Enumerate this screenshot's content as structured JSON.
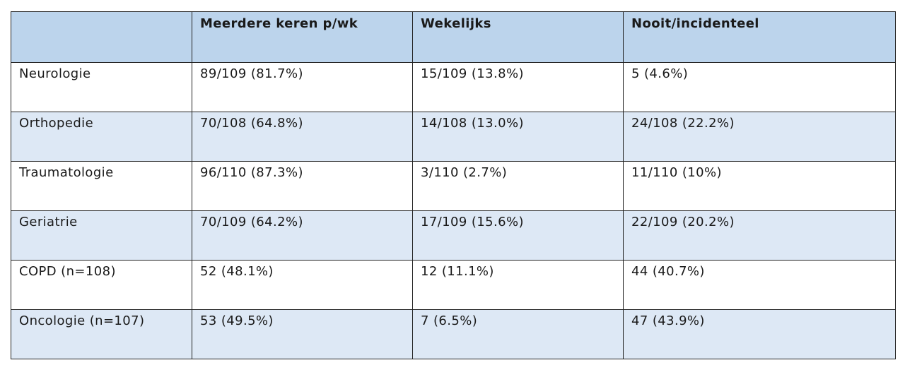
{
  "table": {
    "headers": [
      "",
      "Meerdere keren p/wk",
      "Wekelijks",
      "Nooit/incidenteel"
    ],
    "rows": [
      [
        "Neurologie",
        "89/109 (81.7%)",
        "15/109 (13.8%)",
        "5 (4.6%)"
      ],
      [
        "Orthopedie",
        "70/108 (64.8%)",
        "14/108 (13.0%)",
        "24/108 (22.2%)"
      ],
      [
        "Traumatologie",
        "96/110 (87.3%)",
        "3/110 (2.7%)",
        "11/110 (10%)"
      ],
      [
        "Geriatrie",
        "70/109 (64.2%)",
        "17/109 (15.6%)",
        "22/109 (20.2%)"
      ],
      [
        "COPD (n=108)",
        "52 (48.1%)",
        "12 (11.1%)",
        "44 (40.7%)"
      ],
      [
        "Oncologie (n=107)",
        "53 (49.5%)",
        "7 (6.5%)",
        "47 (43.9%)"
      ]
    ],
    "colors": {
      "header_bg": "#bcd4ec",
      "row_alt_bg": "#dde8f5",
      "row_bg": "#ffffff",
      "border": "#222222"
    }
  }
}
